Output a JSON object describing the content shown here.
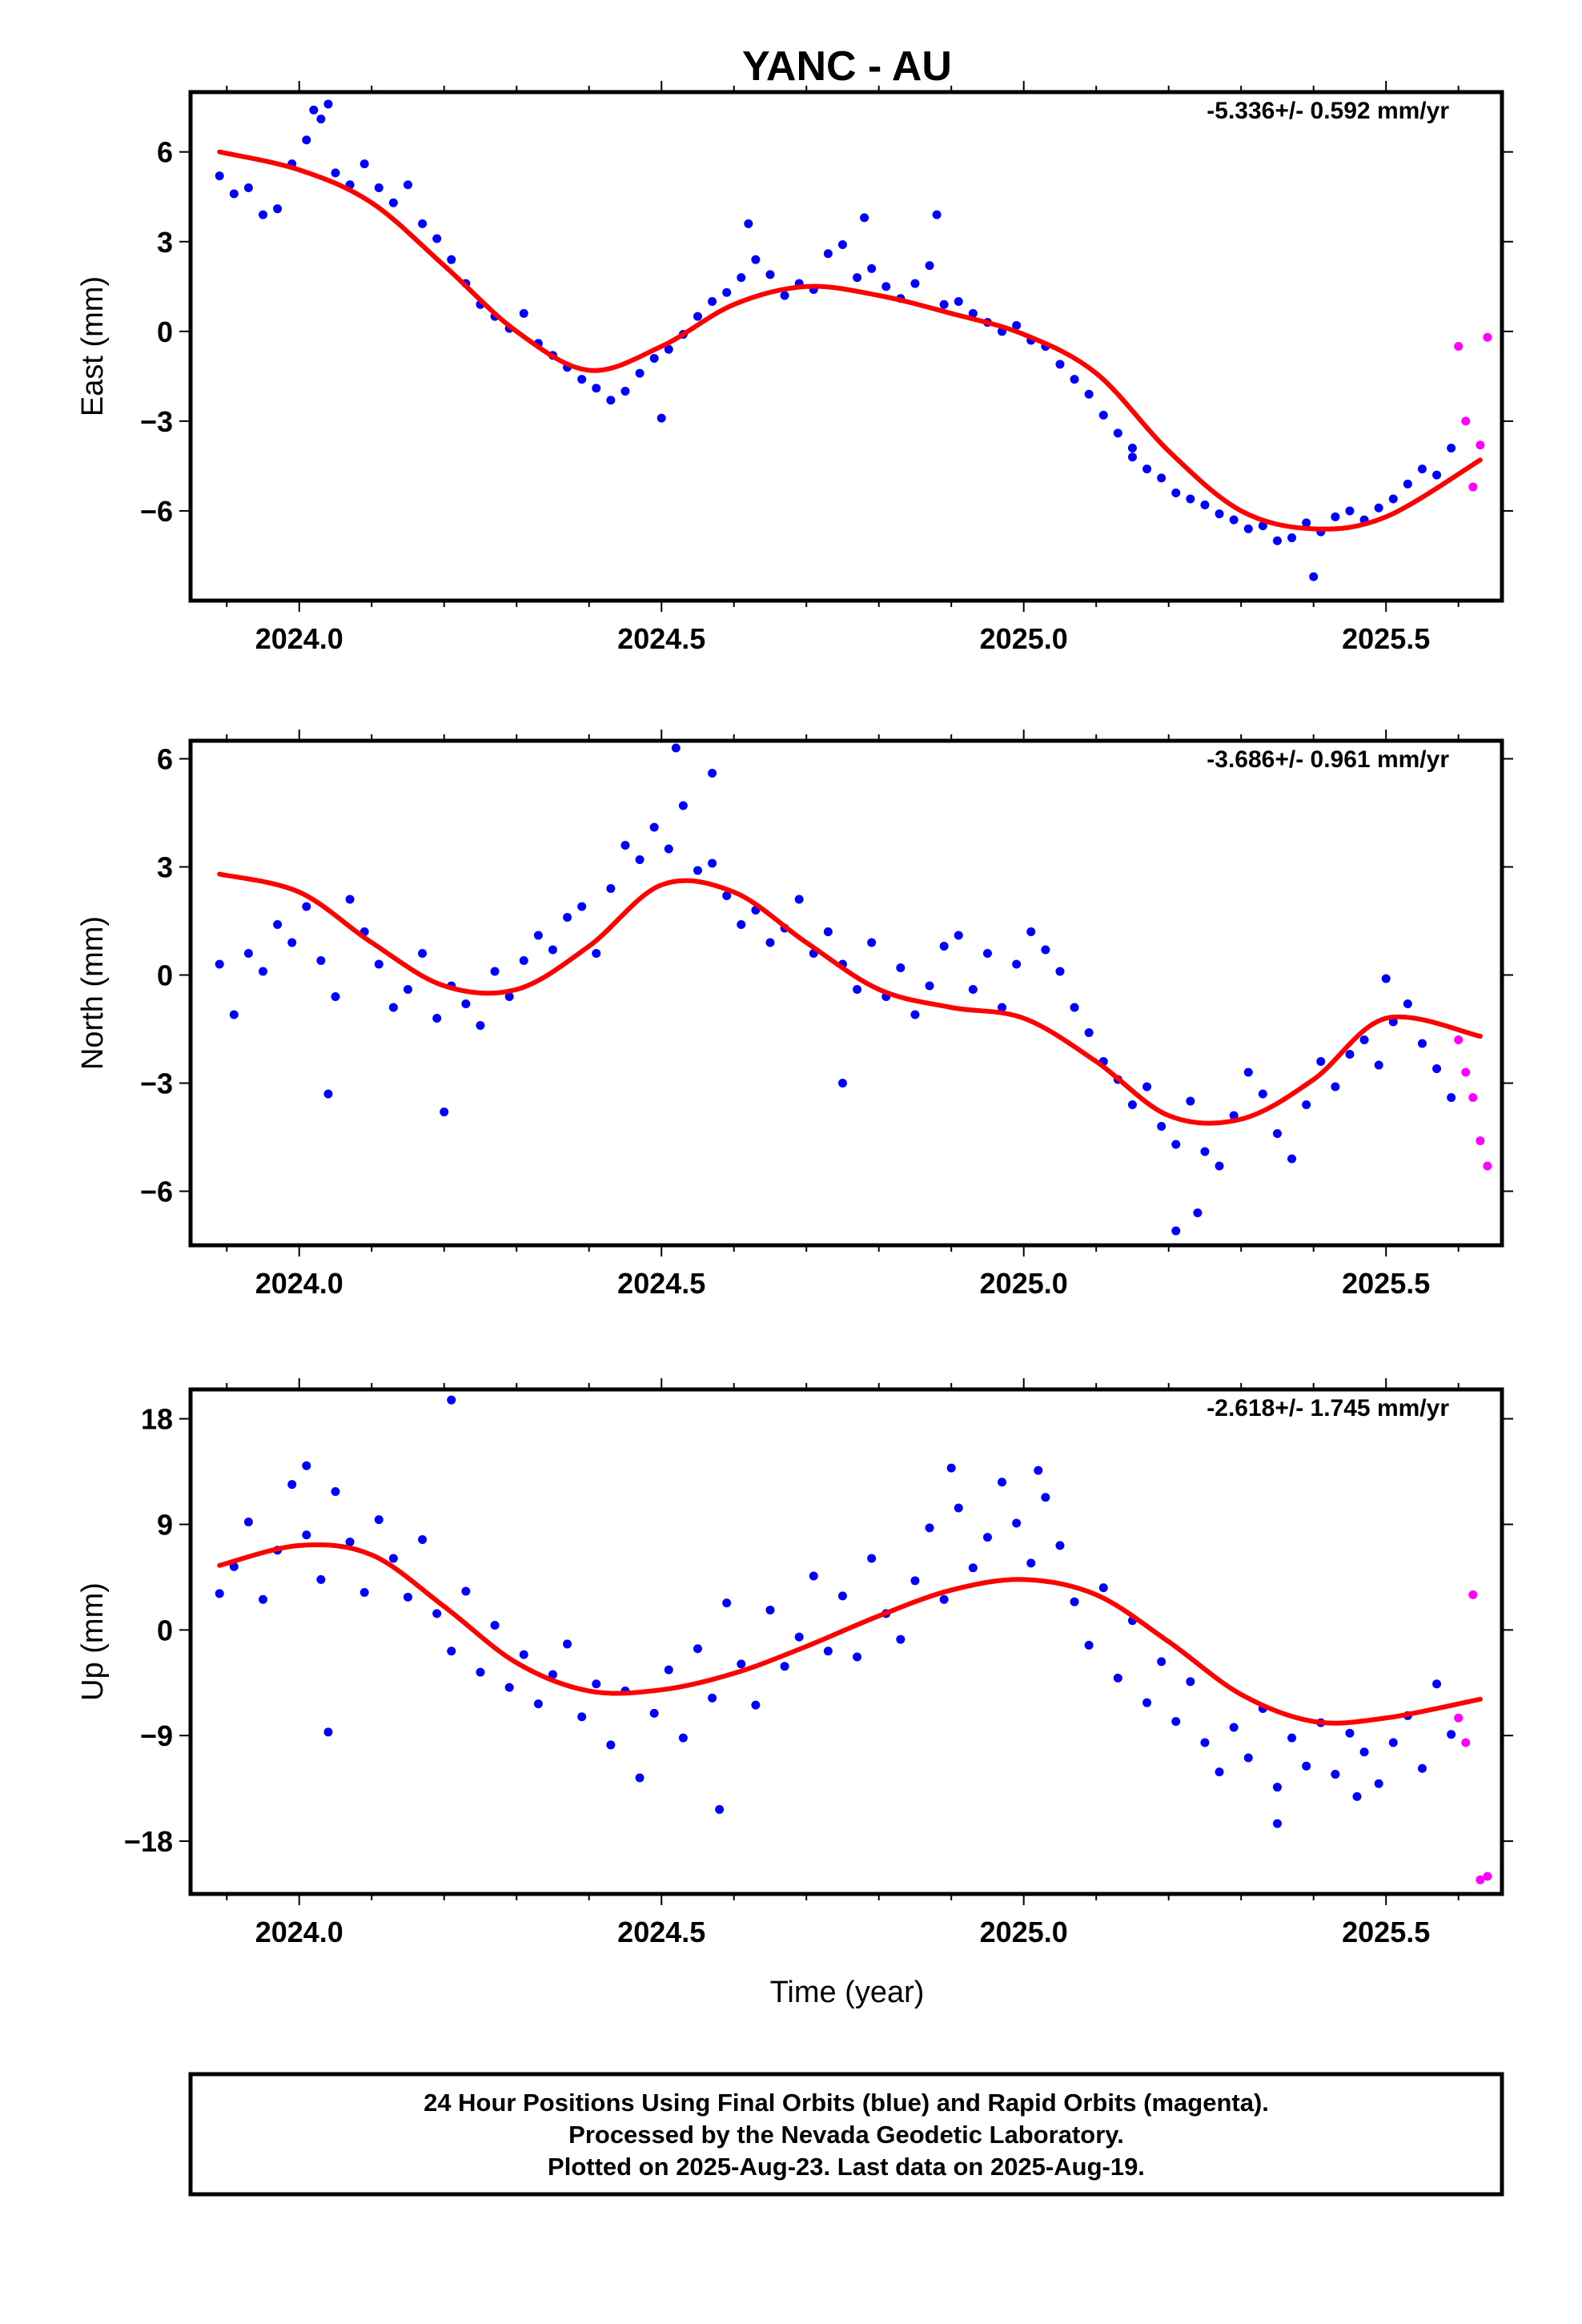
{
  "title": "YANC - AU",
  "xlabel": "Time (year)",
  "footer": {
    "line1": "24 Hour Positions Using Final Orbits (blue) and Rapid Orbits (magenta).",
    "line2": "Processed by the Nevada Geodetic Laboratory.",
    "line3": "Plotted on 2025-Aug-23. Last data on 2025-Aug-19."
  },
  "colors": {
    "final_orbits": "#0000ff",
    "rapid_orbits": "#ff00ff",
    "model_fit": "#ff0000",
    "axes": "#000000"
  },
  "chart_data": [
    {
      "type": "scatter",
      "panel": "east",
      "ylabel": "East (mm)",
      "rate_label": "-5.336+/- 0.592 mm/yr",
      "xlim": [
        2023.85,
        2025.66
      ],
      "ylim": [
        -9,
        8
      ],
      "xticks": [
        2024.0,
        2024.5,
        2025.0,
        2025.5
      ],
      "xtick_labels": [
        "2024.0",
        "2024.5",
        "2025.0",
        "2025.5"
      ],
      "yticks": [
        6,
        3,
        0,
        -3,
        -6
      ],
      "ytick_labels": [
        "6",
        "3",
        "0",
        "−3",
        "−6"
      ],
      "grid": false,
      "model": {
        "name": "fit",
        "x": [
          2023.89,
          2024.0,
          2024.1,
          2024.2,
          2024.3,
          2024.4,
          2024.5,
          2024.6,
          2024.7,
          2024.8,
          2024.9,
          2025.0,
          2025.1,
          2025.2,
          2025.3,
          2025.4,
          2025.5,
          2025.63
        ],
        "y": [
          6.0,
          5.4,
          4.3,
          2.2,
          0.0,
          -1.3,
          -0.5,
          0.9,
          1.5,
          1.2,
          0.6,
          -0.1,
          -1.4,
          -4.0,
          -6.0,
          -6.6,
          -6.2,
          -4.3
        ]
      },
      "final_orbits": {
        "name": "Final Orbits (blue)",
        "x": [
          2023.89,
          2023.91,
          2023.93,
          2023.95,
          2023.97,
          2023.99,
          2024.01,
          2024.03,
          2024.05,
          2024.07,
          2024.09,
          2024.11,
          2024.13,
          2024.15,
          2024.17,
          2024.19,
          2024.21,
          2024.23,
          2024.25,
          2024.27,
          2024.29,
          2024.31,
          2024.33,
          2024.35,
          2024.37,
          2024.39,
          2024.41,
          2024.43,
          2024.45,
          2024.47,
          2024.49,
          2024.51,
          2024.53,
          2024.55,
          2024.57,
          2024.59,
          2024.61,
          2024.63,
          2024.65,
          2024.67,
          2024.69,
          2024.71,
          2024.73,
          2024.75,
          2024.77,
          2024.79,
          2024.81,
          2024.83,
          2024.85,
          2024.87,
          2024.89,
          2024.91,
          2024.93,
          2024.95,
          2024.97,
          2024.99,
          2025.01,
          2025.03,
          2025.05,
          2025.07,
          2025.09,
          2025.11,
          2025.13,
          2025.15,
          2025.17,
          2025.19,
          2025.21,
          2025.23,
          2025.25,
          2025.27,
          2025.29,
          2025.31,
          2025.33,
          2025.35,
          2025.37,
          2025.39,
          2025.41,
          2025.43,
          2025.45,
          2025.47,
          2025.49,
          2025.51,
          2025.53,
          2025.55,
          2025.57,
          2025.59,
          2024.02,
          2024.04,
          2024.5,
          2024.62,
          2024.78,
          2024.88,
          2025.15,
          2025.4
        ],
        "y": [
          5.2,
          4.6,
          4.8,
          3.9,
          4.1,
          5.6,
          6.4,
          7.1,
          5.3,
          4.9,
          5.6,
          4.8,
          4.3,
          4.9,
          3.6,
          3.1,
          2.4,
          1.6,
          0.9,
          0.5,
          0.1,
          0.6,
          -0.4,
          -0.8,
          -1.2,
          -1.6,
          -1.9,
          -2.3,
          -2.0,
          -1.4,
          -0.9,
          -0.6,
          -0.1,
          0.5,
          1.0,
          1.3,
          1.8,
          2.4,
          1.9,
          1.2,
          1.6,
          1.4,
          2.6,
          2.9,
          1.8,
          2.1,
          1.5,
          1.1,
          1.6,
          2.2,
          0.9,
          1.0,
          0.6,
          0.3,
          0.0,
          0.2,
          -0.3,
          -0.5,
          -1.1,
          -1.6,
          -2.1,
          -2.8,
          -3.4,
          -3.9,
          -4.6,
          -4.9,
          -5.4,
          -5.6,
          -5.8,
          -6.1,
          -6.3,
          -6.6,
          -6.5,
          -7.0,
          -6.9,
          -6.4,
          -6.7,
          -6.2,
          -6.0,
          -6.3,
          -5.9,
          -5.6,
          -5.1,
          -4.6,
          -4.8,
          -3.9,
          7.4,
          7.6,
          -2.9,
          3.6,
          3.8,
          3.9,
          -4.2,
          -8.2
        ]
      },
      "rapid_orbits": {
        "name": "Rapid Orbits (magenta)",
        "x": [
          2025.6,
          2025.61,
          2025.62,
          2025.63,
          2025.64
        ],
        "y": [
          -0.5,
          -3.0,
          -5.2,
          -3.8,
          -0.2
        ]
      }
    },
    {
      "type": "scatter",
      "panel": "north",
      "ylabel": "North (mm)",
      "rate_label": "-3.686+/- 0.961 mm/yr",
      "xlim": [
        2023.85,
        2025.66
      ],
      "ylim": [
        -7.5,
        6.5
      ],
      "xticks": [
        2024.0,
        2024.5,
        2025.0,
        2025.5
      ],
      "xtick_labels": [
        "2024.0",
        "2024.5",
        "2025.0",
        "2025.5"
      ],
      "yticks": [
        6,
        3,
        0,
        -3,
        -6
      ],
      "ytick_labels": [
        "6",
        "3",
        "0",
        "−3",
        "−6"
      ],
      "grid": false,
      "model": {
        "name": "fit",
        "x": [
          2023.89,
          2024.0,
          2024.1,
          2024.2,
          2024.3,
          2024.4,
          2024.5,
          2024.6,
          2024.7,
          2024.8,
          2024.9,
          2025.0,
          2025.1,
          2025.2,
          2025.3,
          2025.4,
          2025.5,
          2025.63
        ],
        "y": [
          2.8,
          2.3,
          0.9,
          -0.3,
          -0.4,
          0.8,
          2.5,
          2.3,
          0.9,
          -0.4,
          -0.9,
          -1.2,
          -2.4,
          -3.9,
          -4.0,
          -2.9,
          -1.2,
          -1.7
        ]
      },
      "final_orbits": {
        "name": "Final Orbits (blue)",
        "x": [
          2023.89,
          2023.91,
          2023.93,
          2023.95,
          2023.97,
          2023.99,
          2024.01,
          2024.03,
          2024.05,
          2024.07,
          2024.09,
          2024.11,
          2024.13,
          2024.15,
          2024.17,
          2024.19,
          2024.21,
          2024.23,
          2024.25,
          2024.27,
          2024.29,
          2024.31,
          2024.33,
          2024.35,
          2024.37,
          2024.39,
          2024.41,
          2024.43,
          2024.45,
          2024.47,
          2024.49,
          2024.51,
          2024.53,
          2024.55,
          2024.57,
          2024.59,
          2024.61,
          2024.63,
          2024.65,
          2024.67,
          2024.69,
          2024.71,
          2024.73,
          2024.75,
          2024.77,
          2024.79,
          2024.81,
          2024.83,
          2024.85,
          2024.87,
          2024.89,
          2024.91,
          2024.93,
          2024.95,
          2024.97,
          2024.99,
          2025.01,
          2025.03,
          2025.05,
          2025.07,
          2025.09,
          2025.11,
          2025.13,
          2025.15,
          2025.17,
          2025.19,
          2025.21,
          2025.23,
          2025.25,
          2025.27,
          2025.29,
          2025.31,
          2025.33,
          2025.35,
          2025.37,
          2025.39,
          2025.41,
          2025.43,
          2025.45,
          2025.47,
          2025.49,
          2025.51,
          2025.53,
          2025.55,
          2025.57,
          2025.59,
          2024.04,
          2024.2,
          2024.52,
          2024.57,
          2024.75,
          2025.21,
          2025.24,
          2025.5
        ],
        "y": [
          0.3,
          -1.1,
          0.6,
          0.1,
          1.4,
          0.9,
          1.9,
          0.4,
          -0.6,
          2.1,
          1.2,
          0.3,
          -0.9,
          -0.4,
          0.6,
          -1.2,
          -0.3,
          -0.8,
          -1.4,
          0.1,
          -0.6,
          0.4,
          1.1,
          0.7,
          1.6,
          1.9,
          0.6,
          2.4,
          3.6,
          3.2,
          4.1,
          3.5,
          4.7,
          2.9,
          3.1,
          2.2,
          1.4,
          1.8,
          0.9,
          1.3,
          2.1,
          0.6,
          1.2,
          0.3,
          -0.4,
          0.9,
          -0.6,
          0.2,
          -1.1,
          -0.3,
          0.8,
          1.1,
          -0.4,
          0.6,
          -0.9,
          0.3,
          1.2,
          0.7,
          0.1,
          -0.9,
          -1.6,
          -2.4,
          -2.9,
          -3.6,
          -3.1,
          -4.2,
          -4.7,
          -3.5,
          -4.9,
          -5.3,
          -3.9,
          -2.7,
          -3.3,
          -4.4,
          -5.1,
          -3.6,
          -2.4,
          -3.1,
          -2.2,
          -1.8,
          -2.5,
          -1.3,
          -0.8,
          -1.9,
          -2.6,
          -3.4,
          -3.3,
          -3.8,
          6.3,
          5.6,
          -3.0,
          -7.1,
          -6.6,
          -0.1
        ]
      },
      "rapid_orbits": {
        "name": "Rapid Orbits (magenta)",
        "x": [
          2025.6,
          2025.61,
          2025.62,
          2025.63,
          2025.64
        ],
        "y": [
          -1.8,
          -2.7,
          -3.4,
          -4.6,
          -5.3
        ]
      }
    },
    {
      "type": "scatter",
      "panel": "up",
      "ylabel": "Up (mm)",
      "rate_label": "-2.618+/- 1.745 mm/yr",
      "xlim": [
        2023.85,
        2025.66
      ],
      "ylim": [
        -22.5,
        20.5
      ],
      "xticks": [
        2024.0,
        2024.5,
        2025.0,
        2025.5
      ],
      "xtick_labels": [
        "2024.0",
        "2024.5",
        "2025.0",
        "2025.5"
      ],
      "yticks": [
        18,
        9,
        0,
        -9,
        -18
      ],
      "ytick_labels": [
        "18",
        "9",
        "0",
        "−9",
        "−18"
      ],
      "grid": false,
      "model": {
        "name": "fit",
        "x": [
          2023.89,
          2024.0,
          2024.1,
          2024.2,
          2024.3,
          2024.4,
          2024.5,
          2024.6,
          2024.7,
          2024.8,
          2024.9,
          2025.0,
          2025.1,
          2025.2,
          2025.3,
          2025.4,
          2025.5,
          2025.63
        ],
        "y": [
          5.5,
          7.2,
          6.4,
          2.0,
          -2.8,
          -5.2,
          -5.1,
          -3.7,
          -1.4,
          1.2,
          3.4,
          4.3,
          3.0,
          -1.0,
          -5.5,
          -7.8,
          -7.5,
          -5.9
        ]
      },
      "final_orbits": {
        "name": "Final Orbits (blue)",
        "x": [
          2023.89,
          2023.91,
          2023.93,
          2023.95,
          2023.97,
          2023.99,
          2024.01,
          2024.03,
          2024.05,
          2024.07,
          2024.09,
          2024.11,
          2024.13,
          2024.15,
          2024.17,
          2024.19,
          2024.21,
          2024.23,
          2024.25,
          2024.27,
          2024.29,
          2024.31,
          2024.33,
          2024.35,
          2024.37,
          2024.39,
          2024.41,
          2024.43,
          2024.45,
          2024.47,
          2024.49,
          2024.51,
          2024.53,
          2024.55,
          2024.57,
          2024.59,
          2024.61,
          2024.63,
          2024.65,
          2024.67,
          2024.69,
          2024.71,
          2024.73,
          2024.75,
          2024.77,
          2024.79,
          2024.81,
          2024.83,
          2024.85,
          2024.87,
          2024.89,
          2024.91,
          2024.93,
          2024.95,
          2024.97,
          2024.99,
          2025.01,
          2025.03,
          2025.05,
          2025.07,
          2025.09,
          2025.11,
          2025.13,
          2025.15,
          2025.17,
          2025.19,
          2025.21,
          2025.23,
          2025.25,
          2025.27,
          2025.29,
          2025.31,
          2025.33,
          2025.35,
          2025.37,
          2025.39,
          2025.41,
          2025.43,
          2025.45,
          2025.47,
          2025.49,
          2025.51,
          2025.53,
          2025.55,
          2025.57,
          2025.59,
          2024.04,
          2024.21,
          2024.58,
          2024.9,
          2025.02,
          2025.35,
          2025.46,
          2024.01
        ],
        "y": [
          3.1,
          5.4,
          9.2,
          2.6,
          6.8,
          12.4,
          8.1,
          4.3,
          11.8,
          7.5,
          3.2,
          9.4,
          6.1,
          2.8,
          7.7,
          1.4,
          -1.8,
          3.3,
          -3.6,
          0.4,
          -4.9,
          -2.1,
          -6.3,
          -3.8,
          -1.2,
          -7.4,
          -4.6,
          -9.8,
          -5.2,
          -12.6,
          -7.1,
          -3.4,
          -9.2,
          -1.6,
          -5.8,
          2.3,
          -2.9,
          -6.4,
          1.7,
          -3.1,
          -0.6,
          4.6,
          -1.8,
          2.9,
          -2.3,
          6.1,
          1.4,
          -0.8,
          4.2,
          8.7,
          2.6,
          10.4,
          5.3,
          7.9,
          12.6,
          9.1,
          5.7,
          11.3,
          7.2,
          2.4,
          -1.3,
          3.6,
          -4.1,
          0.8,
          -6.2,
          -2.7,
          -7.8,
          -4.4,
          -9.6,
          -12.1,
          -8.3,
          -10.9,
          -6.7,
          -13.4,
          -9.2,
          -11.6,
          -7.9,
          -12.3,
          -8.8,
          -10.4,
          -13.1,
          -9.6,
          -7.3,
          -11.8,
          -4.6,
          -8.9,
          -8.7,
          19.6,
          -15.3,
          13.8,
          13.6,
          -16.5,
          -14.2,
          14.0
        ]
      },
      "rapid_orbits": {
        "name": "Rapid Orbits (magenta)",
        "x": [
          2025.6,
          2025.61,
          2025.62,
          2025.63,
          2025.64
        ],
        "y": [
          -7.5,
          -9.6,
          3.0,
          -21.3,
          -21.0
        ]
      }
    }
  ]
}
